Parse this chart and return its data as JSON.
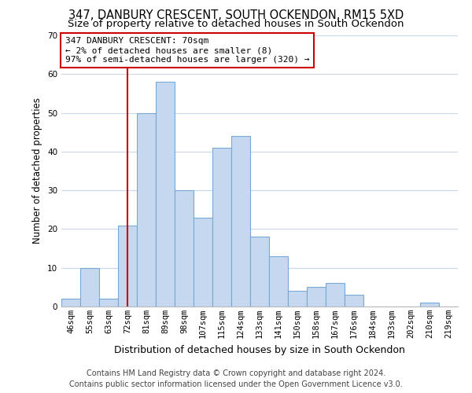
{
  "title": "347, DANBURY CRESCENT, SOUTH OCKENDON, RM15 5XD",
  "subtitle": "Size of property relative to detached houses in South Ockendon",
  "xlabel": "Distribution of detached houses by size in South Ockendon",
  "ylabel": "Number of detached properties",
  "bar_labels": [
    "46sqm",
    "55sqm",
    "63sqm",
    "72sqm",
    "81sqm",
    "89sqm",
    "98sqm",
    "107sqm",
    "115sqm",
    "124sqm",
    "133sqm",
    "141sqm",
    "150sqm",
    "158sqm",
    "167sqm",
    "176sqm",
    "184sqm",
    "193sqm",
    "202sqm",
    "210sqm",
    "219sqm"
  ],
  "bar_values": [
    2,
    10,
    2,
    21,
    50,
    58,
    30,
    23,
    41,
    44,
    18,
    13,
    4,
    5,
    6,
    3,
    0,
    0,
    0,
    1,
    0
  ],
  "ylim": [
    0,
    70
  ],
  "yticks": [
    0,
    10,
    20,
    30,
    40,
    50,
    60,
    70
  ],
  "bar_color": "#c5d8f0",
  "bar_edge_color": "#7aa8d4",
  "vline_x": 3,
  "vline_color": "#cc0000",
  "annotation_text": "347 DANBURY CRESCENT: 70sqm\n← 2% of detached houses are smaller (8)\n97% of semi-detached houses are larger (320) →",
  "annotation_box_color": "#ffffff",
  "annotation_box_edge_color": "#cc0000",
  "footer_line1": "Contains HM Land Registry data © Crown copyright and database right 2024.",
  "footer_line2": "Contains public sector information licensed under the Open Government Licence v3.0.",
  "bg_color": "#ffffff",
  "grid_color": "#c8d8e8",
  "title_fontsize": 10.5,
  "subtitle_fontsize": 9.5,
  "xlabel_fontsize": 9,
  "ylabel_fontsize": 8.5,
  "tick_fontsize": 7.5,
  "annotation_fontsize": 8,
  "footer_fontsize": 7
}
